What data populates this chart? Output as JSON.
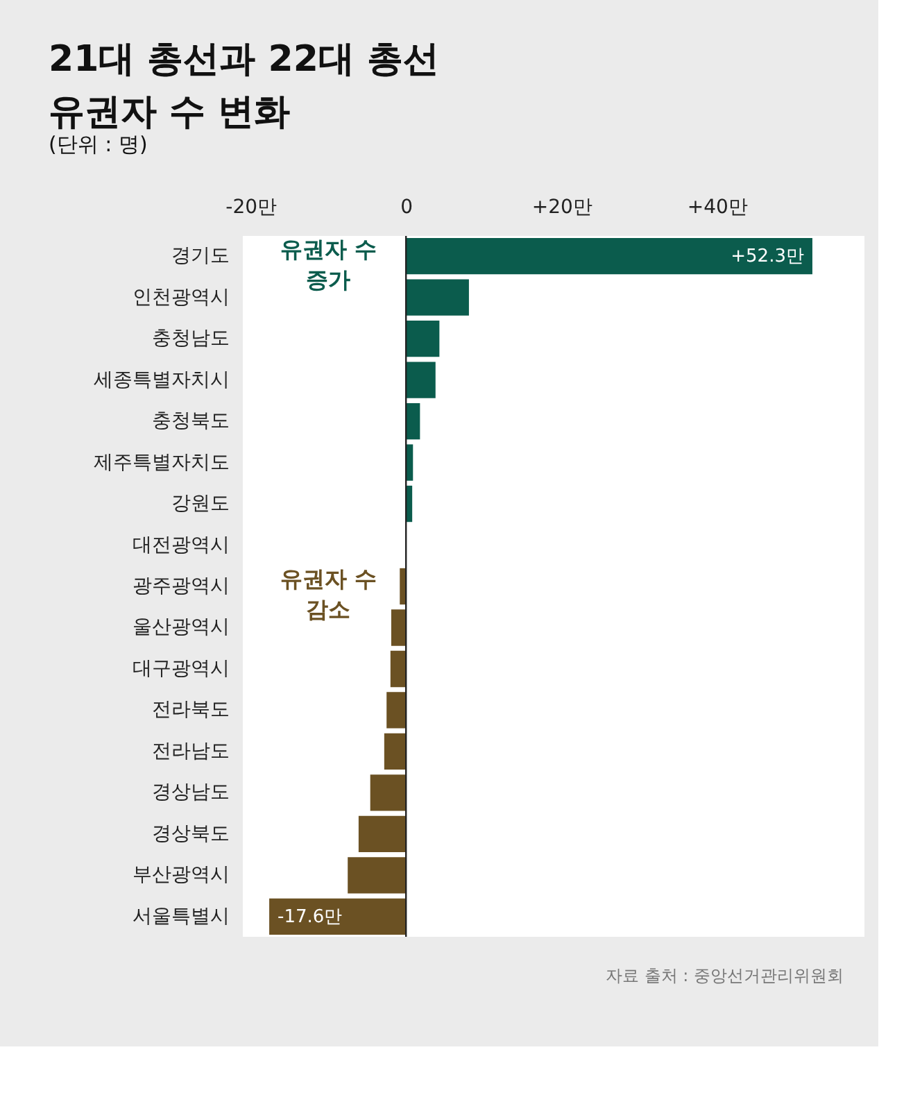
{
  "chart_data": {
    "type": "bar",
    "orientation": "horizontal",
    "title": "21대 총선과 22대 총선 유권자 수 변화",
    "subtitle": "(단위 : 명)",
    "categories": [
      "경기도",
      "인천광역시",
      "충청남도",
      "세종특별자치시",
      "충청북도",
      "제주특별자치도",
      "강원도",
      "대전광역시",
      "광주광역시",
      "울산광역시",
      "대구광역시",
      "전라북도",
      "전라남도",
      "경상남도",
      "경상북도",
      "부산광역시",
      "서울특별시"
    ],
    "values": [
      52.3,
      8.1,
      4.3,
      3.8,
      1.8,
      0.9,
      0.8,
      0,
      -0.8,
      -1.9,
      -2.0,
      -2.5,
      -2.8,
      -4.6,
      -6.1,
      -7.5,
      -17.6
    ],
    "colors": [
      "#0b5c4d",
      "#0b5c4d",
      "#0b5c4d",
      "#0b5c4d",
      "#0b5c4d",
      "#0b5c4d",
      "#0b5c4d",
      "#6b5123",
      "#6b5123",
      "#6b5123",
      "#6b5123",
      "#6b5123",
      "#6b5123",
      "#6b5123",
      "#6b5123",
      "#6b5123",
      "#6b5123"
    ],
    "value_labels": [
      "+52.3만",
      null,
      null,
      null,
      null,
      null,
      null,
      null,
      null,
      null,
      null,
      null,
      null,
      null,
      null,
      null,
      "-17.6만"
    ],
    "xlim": [
      -21,
      59
    ],
    "xticks": [
      {
        "value": -20,
        "label": "-20만"
      },
      0,
      {
        "value": 20,
        "label": "+20만"
      },
      {
        "value": 40,
        "label": "+40만"
      }
    ],
    "annotations": [
      "유권자 수 증가",
      "유권자 수 감소",
      "자료 출처 : 중앙선거관리위원회"
    ]
  }
}
